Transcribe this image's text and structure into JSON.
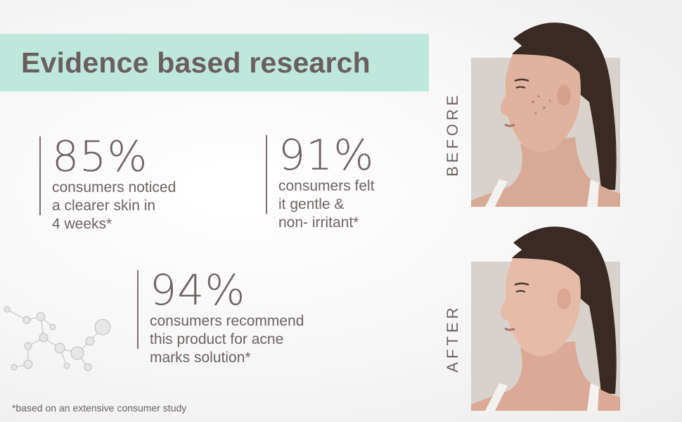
{
  "banner": {
    "title": "Evidence based research"
  },
  "stats": [
    {
      "value": "85%",
      "lines": [
        "consumers noticed",
        "a clearer skin in",
        "4 weeks*"
      ]
    },
    {
      "value": "91%",
      "lines": [
        "consumers felt",
        "it gentle &",
        "non- irritant*"
      ]
    },
    {
      "value": "94%",
      "lines": [
        "consumers recommend",
        "this product for acne",
        "marks solution*"
      ]
    }
  ],
  "photos": {
    "before_label": "BEFORE",
    "after_label": "AFTER"
  },
  "footnote": "*based on an extensive consumer study",
  "colors": {
    "banner_bg": "#bfe8dd",
    "text": "#6e6262",
    "photo_bg": "#d9d2cc"
  }
}
